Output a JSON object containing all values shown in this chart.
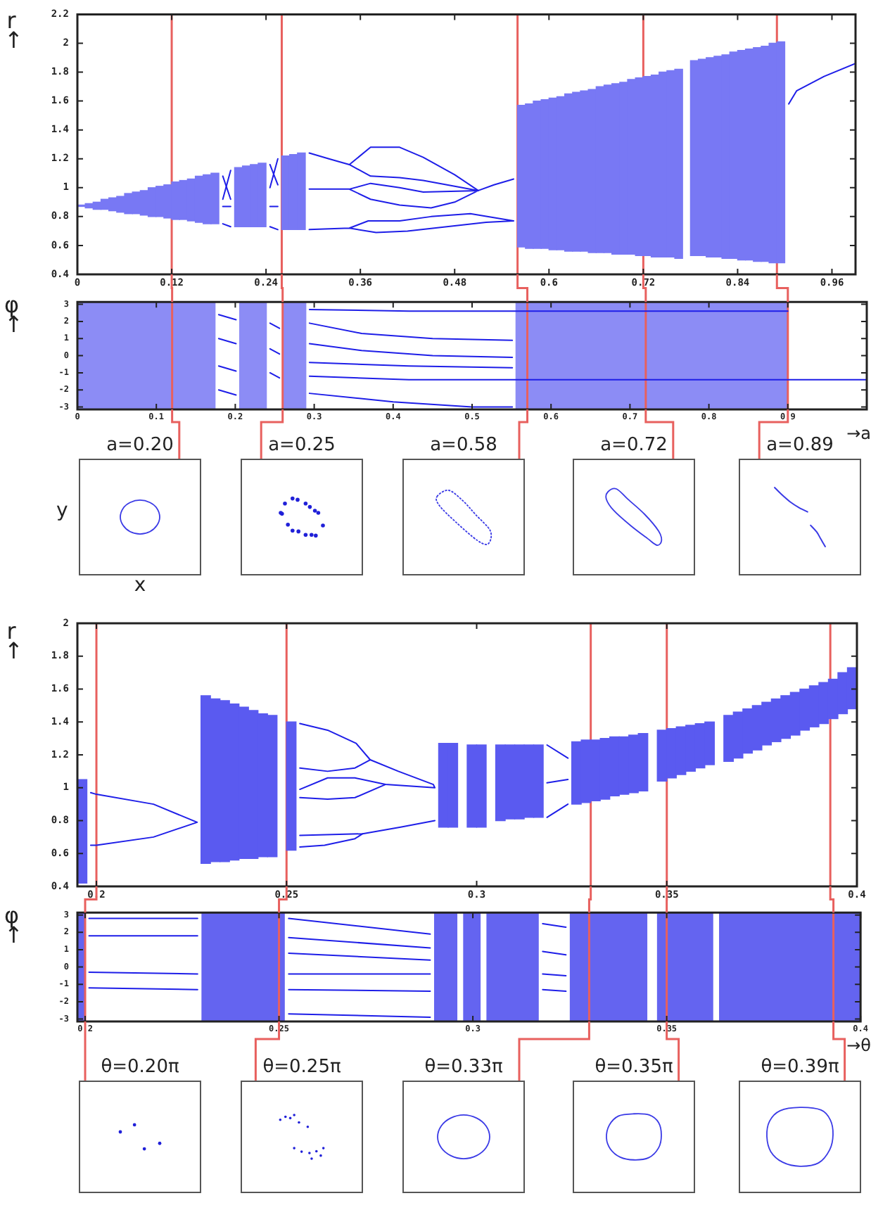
{
  "chart_data": [
    {
      "type": "line",
      "ylabel": "r↑",
      "xlim": [
        0,
        0.99
      ],
      "xticks": [
        0,
        0.12,
        0.24,
        0.36,
        0.48,
        0.6,
        0.72,
        0.84,
        0.96
      ],
      "ylim": [
        0.4,
        2.2
      ],
      "yticks": [
        0.4,
        0.6,
        0.8,
        1,
        1.2,
        1.4,
        1.6,
        1.8,
        2,
        2.2
      ],
      "marker": "none",
      "ref_lines": [
        {
          "axis": "x",
          "value": 0.12,
          "color": "#e8605e"
        },
        {
          "axis": "x",
          "value": 0.26,
          "color": "#e8605e"
        },
        {
          "axis": "x",
          "value": 0.56,
          "color": "#e8605e"
        },
        {
          "axis": "x",
          "value": 0.72,
          "color": "#e8605e"
        },
        {
          "axis": "x",
          "value": 0.89,
          "color": "#e8605e"
        }
      ],
      "series": [
        {
          "type": "bar",
          "color": "#7878f4",
          "x": [
            0.005,
            0.015,
            0.025,
            0.035,
            0.045,
            0.055,
            0.065,
            0.075,
            0.085,
            0.095,
            0.105,
            0.115,
            0.125,
            0.135,
            0.145,
            0.155,
            0.165,
            0.175,
            0.205,
            0.215,
            0.225,
            0.235,
            0.265,
            0.275,
            0.285,
            0.565,
            0.575,
            0.585,
            0.595,
            0.605,
            0.615,
            0.625,
            0.635,
            0.645,
            0.655,
            0.665,
            0.675,
            0.685,
            0.695,
            0.705,
            0.715,
            0.725,
            0.735,
            0.745,
            0.755,
            0.765,
            0.785,
            0.795,
            0.805,
            0.815,
            0.825,
            0.835,
            0.845,
            0.855,
            0.865,
            0.875,
            0.885,
            0.895
          ],
          "base": [
            0.87,
            0.86,
            0.85,
            0.85,
            0.84,
            0.83,
            0.82,
            0.82,
            0.81,
            0.8,
            0.8,
            0.79,
            0.78,
            0.78,
            0.77,
            0.76,
            0.75,
            0.75,
            0.73,
            0.73,
            0.73,
            0.73,
            0.71,
            0.71,
            0.71,
            0.59,
            0.58,
            0.58,
            0.58,
            0.57,
            0.57,
            0.56,
            0.56,
            0.56,
            0.55,
            0.55,
            0.55,
            0.54,
            0.54,
            0.54,
            0.53,
            0.53,
            0.52,
            0.52,
            0.52,
            0.51,
            0.53,
            0.53,
            0.52,
            0.52,
            0.51,
            0.51,
            0.5,
            0.5,
            0.49,
            0.49,
            0.48,
            0.48
          ],
          "values": [
            0.01,
            0.03,
            0.05,
            0.07,
            0.09,
            0.11,
            0.14,
            0.15,
            0.17,
            0.2,
            0.21,
            0.23,
            0.26,
            0.27,
            0.29,
            0.32,
            0.34,
            0.35,
            0.41,
            0.42,
            0.43,
            0.44,
            0.51,
            0.52,
            0.53,
            0.98,
            1,
            1.02,
            1.03,
            1.05,
            1.06,
            1.09,
            1.1,
            1.11,
            1.13,
            1.15,
            1.16,
            1.18,
            1.19,
            1.21,
            1.23,
            1.24,
            1.26,
            1.28,
            1.29,
            1.31,
            1.35,
            1.36,
            1.38,
            1.39,
            1.41,
            1.43,
            1.45,
            1.46,
            1.48,
            1.49,
            1.52,
            1.53
          ]
        },
        {
          "color": "#1e1ee8",
          "x": [
            0.185,
            0.195
          ],
          "values": [
            1.08,
            0.92
          ]
        },
        {
          "color": "#1e1ee8",
          "x": [
            0.185,
            0.195
          ],
          "values": [
            0.92,
            1.12
          ]
        },
        {
          "color": "#1e1ee8",
          "x": [
            0.185,
            0.195
          ],
          "values": [
            0.87,
            0.87
          ]
        },
        {
          "color": "#1e1ee8",
          "x": [
            0.185,
            0.195
          ],
          "values": [
            0.75,
            0.73
          ]
        },
        {
          "color": "#1e1ee8",
          "x": [
            0.245,
            0.255
          ],
          "values": [
            1.16,
            1.02
          ]
        },
        {
          "color": "#1e1ee8",
          "x": [
            0.245,
            0.255
          ],
          "values": [
            1,
            1.2
          ]
        },
        {
          "color": "#1e1ee8",
          "x": [
            0.245,
            0.255
          ],
          "values": [
            0.87,
            0.87
          ]
        },
        {
          "color": "#1e1ee8",
          "x": [
            0.245,
            0.255
          ],
          "values": [
            0.73,
            0.71
          ]
        },
        {
          "color": "#1e1ee8",
          "x": [
            0.295,
            0.32,
            0.346,
            0.373,
            0.41,
            0.44,
            0.48,
            0.51,
            0.53,
            0.555
          ],
          "values": [
            1.24,
            1.2,
            1.16,
            1.28,
            1.28,
            1.21,
            1.09,
            0.98,
            1.02,
            1.06
          ]
        },
        {
          "color": "#1e1ee8",
          "x": [
            0.346,
            0.373,
            0.41,
            0.44,
            0.48,
            0.51
          ],
          "values": [
            1.16,
            1.08,
            1.07,
            1.05,
            1.01,
            0.98
          ]
        },
        {
          "color": "#1e1ee8",
          "x": [
            0.295,
            0.346,
            0.373,
            0.41,
            0.44,
            0.51,
            0.48,
            0.45,
            0.41,
            0.373,
            0.346
          ],
          "values": [
            0.99,
            0.99,
            1.03,
            1,
            0.97,
            0.98,
            0.9,
            0.86,
            0.88,
            0.92,
            0.99
          ]
        },
        {
          "color": "#1e1ee8",
          "x": [
            0.295,
            0.346,
            0.37,
            0.41,
            0.45,
            0.5,
            0.555,
            0.52,
            0.47,
            0.42,
            0.38,
            0.346
          ],
          "values": [
            0.71,
            0.72,
            0.77,
            0.77,
            0.8,
            0.82,
            0.77,
            0.76,
            0.73,
            0.7,
            0.69,
            0.72
          ]
        },
        {
          "color": "#1e1ee8",
          "x": [
            0.905,
            0.915,
            0.95,
            0.99
          ],
          "values": [
            1.58,
            1.67,
            1.77,
            1.86
          ]
        }
      ]
    },
    {
      "type": "line",
      "ylabel": "φ↑",
      "xlabel": "→a",
      "xlim": [
        0,
        1
      ],
      "xticks": [
        0,
        0.1,
        0.2,
        0.3,
        0.4,
        0.5,
        0.6,
        0.7,
        0.8,
        0.9
      ],
      "ylim": [
        -3.14,
        3.14
      ],
      "yticks": [
        -3,
        -2,
        -1,
        0,
        1,
        2,
        3
      ],
      "marker": "none",
      "bands": [
        {
          "axis": "x",
          "from": 0,
          "to": 0.175,
          "color": "#8c8cf5"
        },
        {
          "axis": "x",
          "from": 0.205,
          "to": 0.24,
          "color": "#8c8cf5"
        },
        {
          "axis": "x",
          "from": 0.26,
          "to": 0.29,
          "color": "#8c8cf5"
        },
        {
          "axis": "x",
          "from": 0.555,
          "to": 0.9,
          "color": "#8c8cf5"
        }
      ],
      "ref_lines": [
        {
          "axis": "x",
          "value": 0.12,
          "color": "#e8605e"
        },
        {
          "axis": "x",
          "value": 0.26,
          "color": "#e8605e"
        },
        {
          "axis": "x",
          "value": 0.57,
          "color": "#e8605e"
        },
        {
          "axis": "x",
          "value": 0.72,
          "color": "#e8605e"
        },
        {
          "axis": "x",
          "value": 0.9,
          "color": "#e8605e"
        }
      ],
      "series": [
        {
          "color": "#1e1ee8",
          "x": [
            0.179,
            0.201
          ],
          "values": [
            2.4,
            2.1
          ]
        },
        {
          "color": "#1e1ee8",
          "x": [
            0.179,
            0.201
          ],
          "values": [
            1,
            0.7
          ]
        },
        {
          "color": "#1e1ee8",
          "x": [
            0.179,
            0.201
          ],
          "values": [
            -0.6,
            -0.9
          ]
        },
        {
          "color": "#1e1ee8",
          "x": [
            0.179,
            0.201
          ],
          "values": [
            -2,
            -2.3
          ]
        },
        {
          "color": "#1e1ee8",
          "x": [
            0.244,
            0.256
          ],
          "values": [
            1.9,
            1.6
          ]
        },
        {
          "color": "#1e1ee8",
          "x": [
            0.244,
            0.256
          ],
          "values": [
            0.4,
            0.1
          ]
        },
        {
          "color": "#1e1ee8",
          "x": [
            0.244,
            0.256
          ],
          "values": [
            -1,
            -1.3
          ]
        },
        {
          "color": "#1e1ee8",
          "x": [
            0.294,
            0.42,
            0.555,
            0.9
          ],
          "values": [
            2.7,
            2.6,
            2.6,
            2.6
          ]
        },
        {
          "color": "#1e1ee8",
          "x": [
            0.294,
            0.36,
            0.45,
            0.551
          ],
          "values": [
            1.9,
            1.3,
            1,
            0.9
          ]
        },
        {
          "color": "#1e1ee8",
          "x": [
            0.294,
            0.36,
            0.45,
            0.551
          ],
          "values": [
            0.7,
            0.3,
            0,
            -0.1
          ]
        },
        {
          "color": "#1e1ee8",
          "x": [
            0.294,
            0.42,
            0.551
          ],
          "values": [
            -0.4,
            -0.6,
            -0.7
          ]
        },
        {
          "color": "#1e1ee8",
          "x": [
            0.294,
            0.42,
            0.555,
            0.9,
            1
          ],
          "values": [
            -1.2,
            -1.4,
            -1.4,
            -1.4,
            -1.4
          ]
        },
        {
          "color": "#1e1ee8",
          "x": [
            0.294,
            0.4,
            0.5,
            0.551
          ],
          "values": [
            -2.2,
            -2.7,
            -3,
            -3
          ]
        }
      ]
    },
    {
      "type": "other",
      "title": "a=0.20",
      "xlabel": "x",
      "ylabel": "y"
    },
    {
      "type": "other",
      "title": "a=0.25"
    },
    {
      "type": "other",
      "title": "a=0.58"
    },
    {
      "type": "other",
      "title": "a=0.72"
    },
    {
      "type": "other",
      "title": "a=0.89"
    },
    {
      "type": "line",
      "ylabel": "r↑",
      "xlim": [
        0.195,
        0.4
      ],
      "xticks": [
        0.2,
        0.25,
        0.3,
        0.35,
        0.4
      ],
      "ylim": [
        0.4,
        2
      ],
      "yticks": [
        0.4,
        0.6,
        0.8,
        1,
        1.2,
        1.4,
        1.6,
        1.8,
        2
      ],
      "marker": "none",
      "ref_lines": [
        {
          "axis": "x",
          "value": 0.2,
          "color": "#e8605e"
        },
        {
          "axis": "x",
          "value": 0.25,
          "color": "#e8605e"
        },
        {
          "axis": "x",
          "value": 0.33,
          "color": "#e8605e"
        },
        {
          "axis": "x",
          "value": 0.35,
          "color": "#e8605e"
        },
        {
          "axis": "x",
          "value": 0.393,
          "color": "#e8605e"
        }
      ],
      "series": [
        {
          "type": "bar",
          "color": "#5a5af0",
          "x": [
            0.19625,
            0.22875,
            0.23125,
            0.23375,
            0.23625,
            0.23875,
            0.24125,
            0.24375,
            0.24625,
            0.25125,
            0.29125,
            0.29375,
            0.29875,
            0.30125,
            0.30625,
            0.30875,
            0.31125,
            0.31375,
            0.31625,
            0.32625,
            0.32875,
            0.33125,
            0.33375,
            0.33625,
            0.33875,
            0.34125,
            0.34375,
            0.34875,
            0.35125,
            0.35375,
            0.35625,
            0.35875,
            0.36125,
            0.36625,
            0.36875,
            0.37125,
            0.37375,
            0.37625,
            0.37875,
            0.38125,
            0.38375,
            0.38625,
            0.38875,
            0.39125,
            0.39375,
            0.39625,
            0.39875
          ],
          "base": [
            0.42,
            0.54,
            0.55,
            0.55,
            0.56,
            0.57,
            0.57,
            0.58,
            0.58,
            0.62,
            0.76,
            0.76,
            0.76,
            0.76,
            0.8,
            0.81,
            0.81,
            0.82,
            0.82,
            0.9,
            0.91,
            0.92,
            0.93,
            0.95,
            0.96,
            0.97,
            0.98,
            1.04,
            1.06,
            1.08,
            1.1,
            1.12,
            1.14,
            1.16,
            1.18,
            1.21,
            1.23,
            1.26,
            1.28,
            1.3,
            1.32,
            1.35,
            1.37,
            1.39,
            1.42,
            1.45,
            1.48
          ],
          "values": [
            0.63,
            1.02,
            0.99,
            0.98,
            0.95,
            0.92,
            0.9,
            0.87,
            0.86,
            0.78,
            0.51,
            0.51,
            0.5,
            0.5,
            0.46,
            0.45,
            0.45,
            0.44,
            0.44,
            0.38,
            0.38,
            0.37,
            0.37,
            0.36,
            0.35,
            0.35,
            0.35,
            0.31,
            0.3,
            0.29,
            0.28,
            0.27,
            0.26,
            0.28,
            0.28,
            0.27,
            0.27,
            0.26,
            0.26,
            0.26,
            0.26,
            0.25,
            0.25,
            0.25,
            0.24,
            0.25,
            0.25
          ]
        },
        {
          "color": "#1e1ee8",
          "x": [
            0.1985,
            0.2,
            0.215,
            0.2265,
            0.215,
            0.2,
            0.1985
          ],
          "values": [
            0.97,
            0.96,
            0.9,
            0.79,
            0.7,
            0.65,
            0.65
          ]
        },
        {
          "color": "#1e1ee8",
          "x": [
            0.2535,
            0.2608,
            0.2683,
            0.272,
            0.2794,
            0.2886,
            0.289,
            0.276,
            0.268,
            0.2608,
            0.2535
          ],
          "values": [
            1.39,
            1.35,
            1.27,
            1.17,
            1.1,
            1.02,
            1,
            1.02,
            1.06,
            1.06,
            0.99
          ]
        },
        {
          "color": "#1e1ee8",
          "x": [
            0.2535,
            0.2608,
            0.268,
            0.272
          ],
          "values": [
            1.12,
            1.1,
            1.12,
            1.17
          ]
        },
        {
          "color": "#1e1ee8",
          "x": [
            0.2535,
            0.2608,
            0.268,
            0.276
          ],
          "values": [
            0.94,
            0.93,
            0.94,
            1.02
          ]
        },
        {
          "color": "#1e1ee8",
          "x": [
            0.2535,
            0.27,
            0.28,
            0.289
          ],
          "values": [
            0.71,
            0.72,
            0.76,
            0.8
          ]
        },
        {
          "color": "#1e1ee8",
          "x": [
            0.2535,
            0.26,
            0.268,
            0.27
          ],
          "values": [
            0.64,
            0.65,
            0.69,
            0.72
          ]
        },
        {
          "color": "#1e1ee8",
          "x": [
            0.3185,
            0.324
          ],
          "values": [
            1.26,
            1.18
          ]
        },
        {
          "color": "#1e1ee8",
          "x": [
            0.3185,
            0.324
          ],
          "values": [
            1.03,
            1.05
          ]
        },
        {
          "color": "#1e1ee8",
          "x": [
            0.3185,
            0.324
          ],
          "values": [
            0.82,
            0.9
          ]
        }
      ]
    },
    {
      "type": "line",
      "ylabel": "φ↑",
      "xlabel": "→θ",
      "xlim": [
        0.198,
        0.4
      ],
      "xticks": [
        0.2,
        0.25,
        0.3,
        0.35,
        0.4
      ],
      "ylim": [
        -3.14,
        3.14
      ],
      "yticks": [
        -3,
        -2,
        -1,
        0,
        1,
        2,
        3
      ],
      "marker": "none",
      "bands": [
        {
          "axis": "x",
          "from": 0.198,
          "to": 0.2,
          "color": "#6464f0"
        },
        {
          "axis": "x",
          "from": 0.23,
          "to": 0.2515,
          "color": "#6464f0"
        },
        {
          "axis": "x",
          "from": 0.29,
          "to": 0.296,
          "color": "#6464f0"
        },
        {
          "axis": "x",
          "from": 0.2975,
          "to": 0.302,
          "color": "#6464f0"
        },
        {
          "axis": "x",
          "from": 0.3035,
          "to": 0.317,
          "color": "#6464f0"
        },
        {
          "axis": "x",
          "from": 0.325,
          "to": 0.345,
          "color": "#6464f0"
        },
        {
          "axis": "x",
          "from": 0.3475,
          "to": 0.362,
          "color": "#6464f0"
        },
        {
          "axis": "x",
          "from": 0.3635,
          "to": 0.4,
          "color": "#6464f0"
        }
      ],
      "ref_lines": [
        {
          "axis": "x",
          "value": 0.2,
          "color": "#e8605e"
        },
        {
          "axis": "x",
          "value": 0.25,
          "color": "#e8605e"
        },
        {
          "axis": "x",
          "value": 0.33,
          "color": "#e8605e"
        },
        {
          "axis": "x",
          "value": 0.35,
          "color": "#e8605e"
        },
        {
          "axis": "x",
          "value": 0.393,
          "color": "#e8605e"
        }
      ],
      "series": [
        {
          "color": "#1e1ee8",
          "x": [
            0.201,
            0.229
          ],
          "values": [
            2.8,
            2.8
          ]
        },
        {
          "color": "#1e1ee8",
          "x": [
            0.201,
            0.229
          ],
          "values": [
            1.8,
            1.8
          ]
        },
        {
          "color": "#1e1ee8",
          "x": [
            0.201,
            0.229
          ],
          "values": [
            -0.3,
            -0.4
          ]
        },
        {
          "color": "#1e1ee8",
          "x": [
            0.201,
            0.229
          ],
          "values": [
            -1.2,
            -1.3
          ]
        },
        {
          "color": "#1e1ee8",
          "x": [
            0.2525,
            0.289
          ],
          "values": [
            2.8,
            1.9
          ]
        },
        {
          "color": "#1e1ee8",
          "x": [
            0.2525,
            0.289
          ],
          "values": [
            1.7,
            1.1
          ]
        },
        {
          "color": "#1e1ee8",
          "x": [
            0.2525,
            0.289
          ],
          "values": [
            0.8,
            0.4
          ]
        },
        {
          "color": "#1e1ee8",
          "x": [
            0.2525,
            0.289
          ],
          "values": [
            -0.4,
            -0.4
          ]
        },
        {
          "color": "#1e1ee8",
          "x": [
            0.2525,
            0.289
          ],
          "values": [
            -1.3,
            -1.4
          ]
        },
        {
          "color": "#1e1ee8",
          "x": [
            0.2525,
            0.289
          ],
          "values": [
            -2.7,
            -2.9
          ]
        },
        {
          "color": "#1e1ee8",
          "x": [
            0.318,
            0.324
          ],
          "values": [
            2.5,
            2.3
          ]
        },
        {
          "color": "#1e1ee8",
          "x": [
            0.318,
            0.324
          ],
          "values": [
            0.9,
            0.7
          ]
        },
        {
          "color": "#1e1ee8",
          "x": [
            0.318,
            0.324
          ],
          "values": [
            -0.4,
            -0.5
          ]
        },
        {
          "color": "#1e1ee8",
          "x": [
            0.318,
            0.324
          ],
          "values": [
            -1.3,
            -1.4
          ]
        }
      ]
    },
    {
      "type": "other",
      "title": "θ=0.20π"
    },
    {
      "type": "other",
      "title": "θ=0.25π"
    },
    {
      "type": "other",
      "title": "θ=0.33π"
    },
    {
      "type": "other",
      "title": "θ=0.35π"
    },
    {
      "type": "other",
      "title": "θ=0.39π"
    }
  ]
}
